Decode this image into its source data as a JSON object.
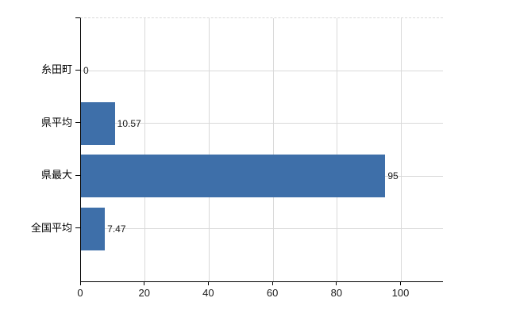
{
  "chart_data": {
    "type": "bar",
    "orientation": "horizontal",
    "title": "",
    "xlabel": "",
    "ylabel": "",
    "categories": [
      "糸田町",
      "県平均",
      "県最大",
      "全国平均"
    ],
    "values": [
      0,
      10.57,
      95,
      7.47
    ],
    "value_labels": [
      "0",
      "10.57",
      "95",
      "7.47"
    ],
    "xlim": [
      0,
      113
    ],
    "xticks": [
      0,
      20,
      40,
      60,
      80,
      100
    ],
    "xtick_labels": [
      "0",
      "20",
      "40",
      "60",
      "80",
      "100"
    ],
    "grid": true,
    "legend": false,
    "bar_color": "#3e6fa9",
    "grid_color": "#d9d9d9",
    "axis_color": "#000000",
    "text_color": "#1a1a1a"
  }
}
